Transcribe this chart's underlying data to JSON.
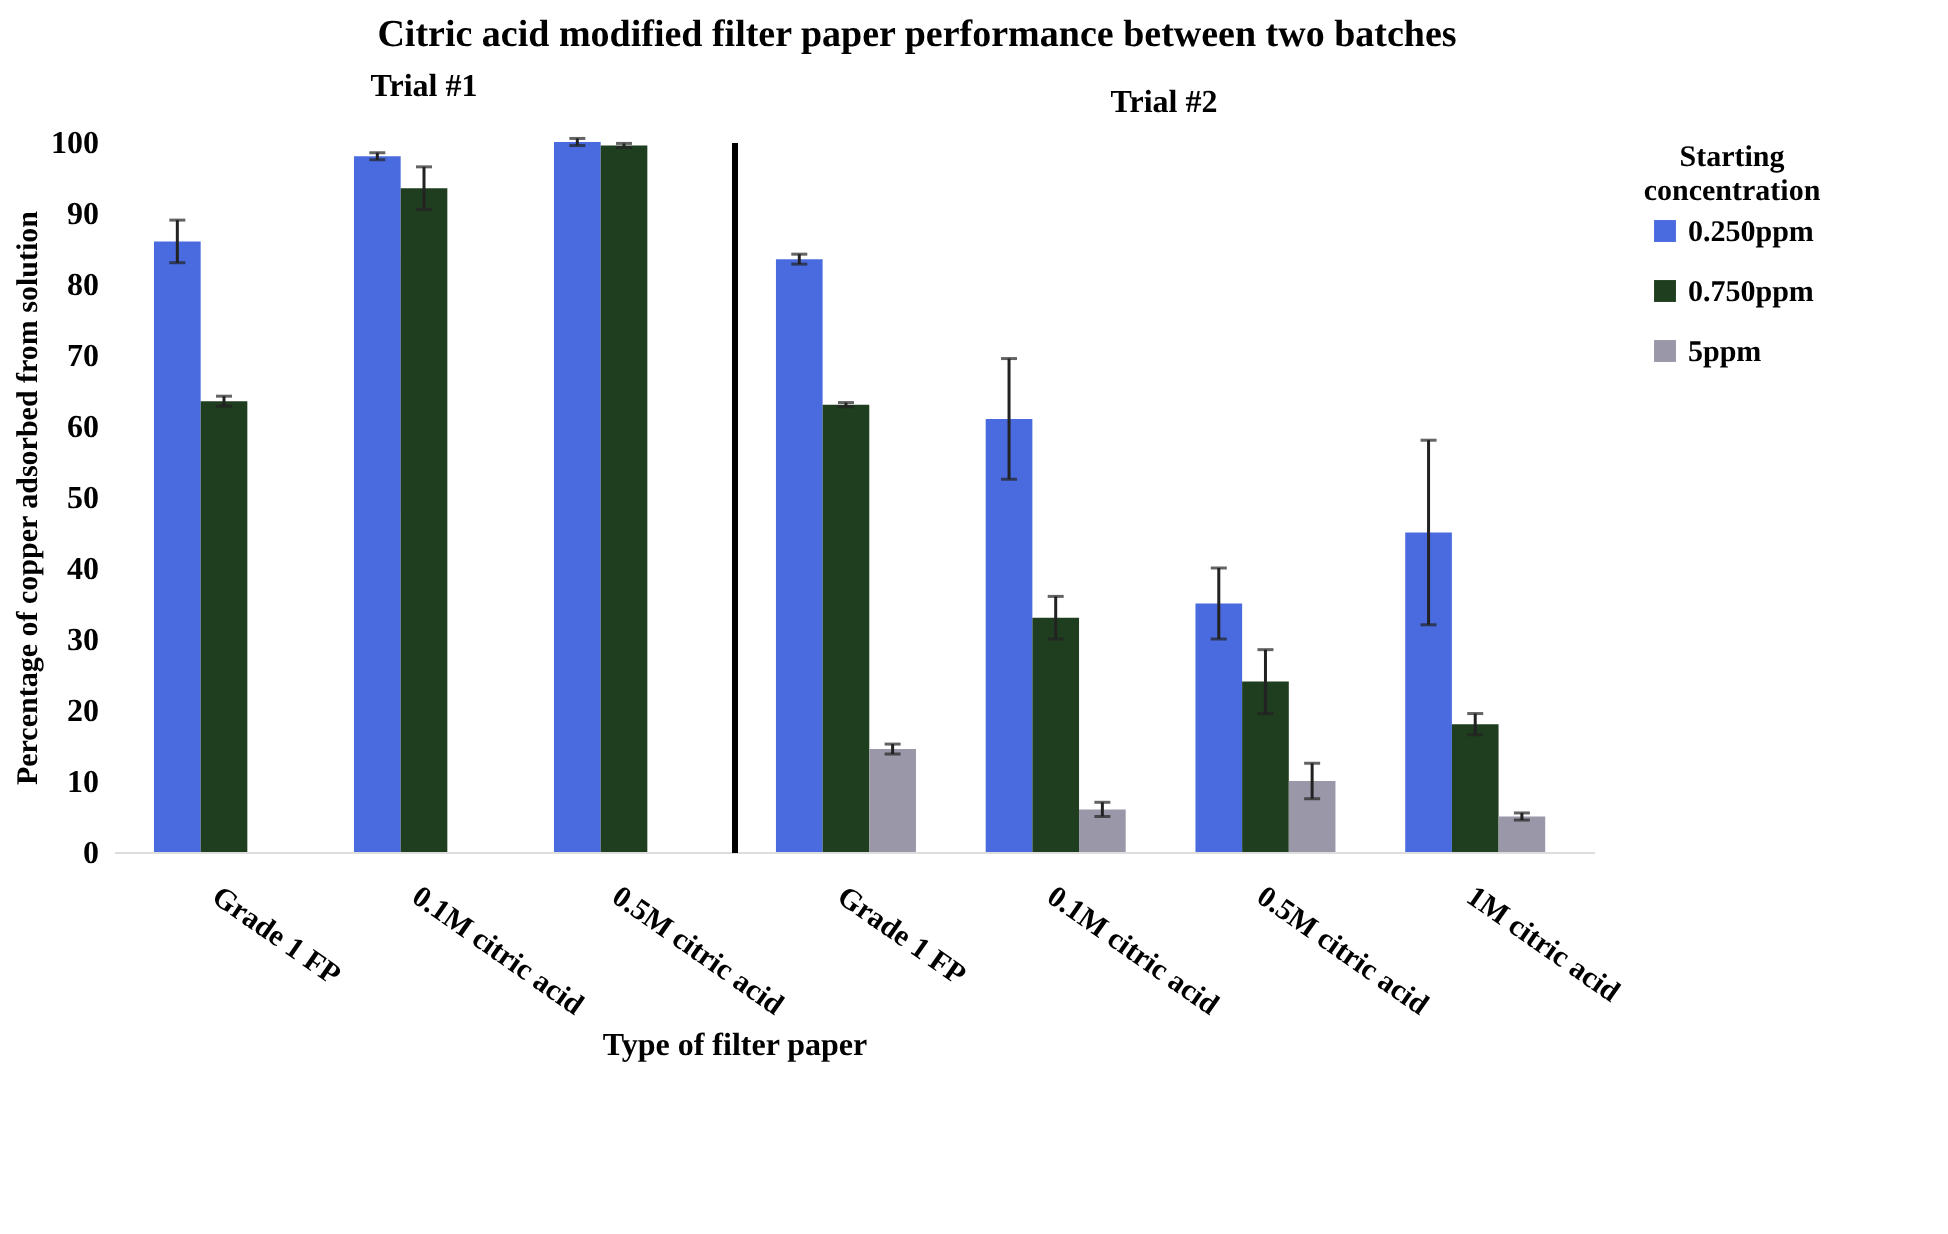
{
  "chart_data": [
    {
      "type": "bar",
      "title": "Citric acid modified filter paper performance between two batches",
      "subtitle": "Trial #1",
      "ylabel": "Percentage of copper adsorbed from solution",
      "categories": [
        "Grade 1 FP",
        "0.1M citric acid",
        "0.5M citric acid"
      ],
      "ylim": [
        0,
        100
      ],
      "yticks": [
        0,
        10,
        20,
        30,
        40,
        50,
        60,
        70,
        80,
        90,
        100
      ],
      "grid": false,
      "legend": "right",
      "series": [
        {
          "name": "0.250ppm",
          "color": "#4a6be0",
          "values": [
            86,
            98,
            100
          ],
          "errors": [
            3,
            0.5,
            0.5
          ]
        },
        {
          "name": "0.750ppm",
          "color": "#1f3d1f",
          "values": [
            63.5,
            93.5,
            99.5
          ],
          "errors": [
            0.7,
            3,
            0.3
          ]
        }
      ]
    },
    {
      "type": "bar",
      "subtitle": "Trial #2",
      "xlabel": "Type of filter paper",
      "legend_title": "Starting concentration",
      "categories": [
        "Grade 1 FP",
        "0.1M citric acid",
        "0.5M citric acid",
        "1M citric acid"
      ],
      "ylim": [
        0,
        100
      ],
      "tick_labels": "x",
      "grid": false,
      "legend": "right",
      "series": [
        {
          "name": "0.250ppm",
          "color": "#4a6be0",
          "values": [
            83.5,
            61,
            35,
            45
          ],
          "errors": [
            0.7,
            8.5,
            5,
            13
          ]
        },
        {
          "name": "0.750ppm",
          "color": "#1f3d1f",
          "values": [
            63,
            33,
            24,
            18
          ],
          "errors": [
            0.3,
            3,
            4.5,
            1.5
          ]
        },
        {
          "name": "5ppm",
          "color": "#9a98a8",
          "values": [
            14.5,
            6,
            10,
            5
          ],
          "errors": [
            0.7,
            1,
            2.5,
            0.5
          ]
        }
      ]
    }
  ]
}
